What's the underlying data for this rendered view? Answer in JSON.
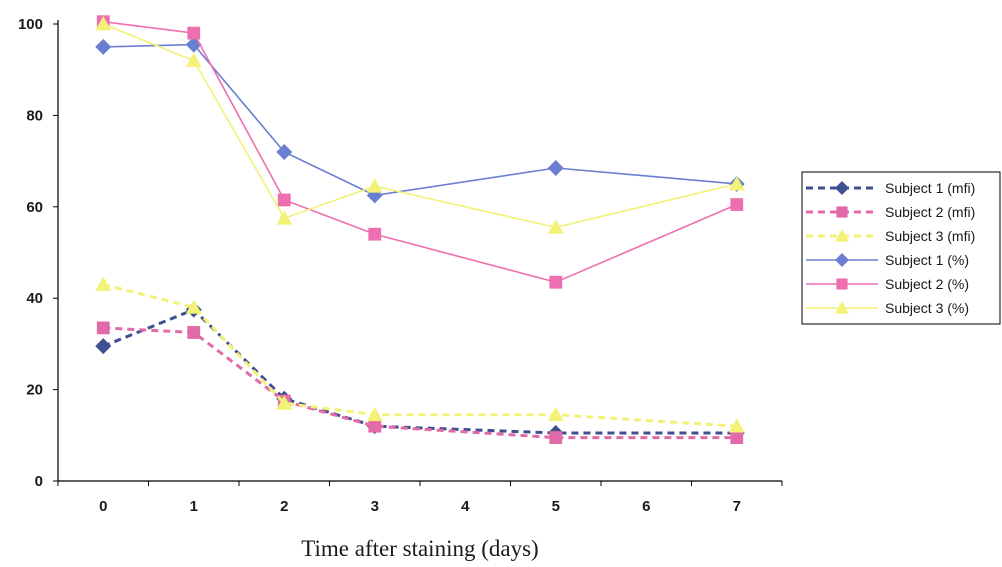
{
  "chart_data": {
    "type": "line",
    "title": "",
    "xlabel": "Time after staining (days)",
    "ylabel": "",
    "xlim": [
      -0.5,
      7.5
    ],
    "ylim": [
      0,
      100
    ],
    "x_ticks": [
      0,
      1,
      2,
      3,
      4,
      5,
      6,
      7
    ],
    "y_ticks": [
      0,
      20,
      40,
      60,
      80,
      100
    ],
    "grid": false,
    "legend_position": "right",
    "x": [
      0,
      1,
      2,
      3,
      5,
      7
    ],
    "series": [
      {
        "name": "Subject 1 (mfi)",
        "values": [
          29.5,
          37.5,
          18,
          12,
          10.5,
          10.5
        ],
        "color": "#3f4f8f",
        "line_style": "dashed",
        "marker": "diamond"
      },
      {
        "name": "Subject 2 (mfi)",
        "values": [
          33.5,
          32.5,
          17.5,
          12,
          9.5,
          9.5
        ],
        "color": "#e36aa8",
        "line_style": "dashed",
        "marker": "square"
      },
      {
        "name": "Subject 3 (mfi)",
        "values": [
          43,
          38,
          17,
          14.5,
          14.5,
          12
        ],
        "color": "#f2f277",
        "line_style": "dashed",
        "marker": "triangle"
      },
      {
        "name": "Subject 1 (%)",
        "values": [
          95,
          95.5,
          72,
          62.5,
          68.5,
          65
        ],
        "color": "#6b7fd0",
        "line_style": "solid",
        "marker": "diamond"
      },
      {
        "name": "Subject 2 (%)",
        "values": [
          100.5,
          98,
          61.5,
          54,
          43.5,
          60.5
        ],
        "color": "#ee6fb0",
        "line_style": "solid",
        "marker": "square"
      },
      {
        "name": "Subject 3 (%)",
        "values": [
          100,
          92,
          57.5,
          64.5,
          55.5,
          65
        ],
        "color": "#f2f277",
        "line_style": "solid",
        "marker": "triangle"
      }
    ]
  }
}
